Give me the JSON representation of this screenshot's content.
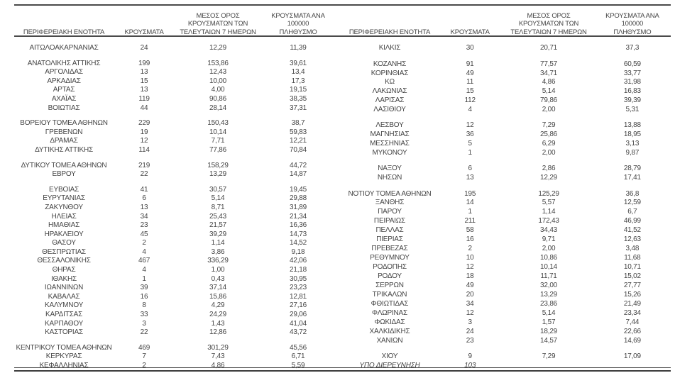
{
  "page": {
    "background_color": "#ffffff",
    "text_color": "#454545",
    "rule_color": "#4a4a4a"
  },
  "headers": {
    "region": "ΠΕΡΙΦΕΡΕΙΑΚΗ ΕΝΟΤΗΤΑ",
    "cases": "ΚΡΟΥΣΜΑΤΑ",
    "avg7": "ΜΕΣΟΣ ΟΡΟΣ\nΚΡΟΥΣΜΑΤΩΝ ΤΩΝ\nΤΕΛΕΥΤΑΙΩΝ 7 ΗΜΕΡΩΝ",
    "per100k": "ΚΡΟΥΣΜΑΤΑ ΑΝΑ 100000\nΠΛΗΘΥΣΜΟ"
  },
  "table_left": {
    "groups": [
      {
        "rows": [
          {
            "name": "ΑΙΤΩΛΟΑΚΑΡΝΑΝΙΑΣ",
            "cases": "24",
            "avg7": "12,29",
            "per100k": "11,39"
          }
        ]
      },
      {
        "rows": [
          {
            "name": "ΑΝΑΤΟΛΙΚΗΣ ΑΤΤΙΚΗΣ",
            "cases": "199",
            "avg7": "153,86",
            "per100k": "39,61"
          },
          {
            "name": "ΑΡΓΟΛΙΔΑΣ",
            "cases": "13",
            "avg7": "12,43",
            "per100k": "13,4"
          },
          {
            "name": "ΑΡΚΑΔΙΑΣ",
            "cases": "15",
            "avg7": "10,00",
            "per100k": "17,3"
          },
          {
            "name": "ΑΡΤΑΣ",
            "cases": "13",
            "avg7": "4,00",
            "per100k": "19,15"
          },
          {
            "name": "ΑΧΑΪΑΣ",
            "cases": "119",
            "avg7": "90,86",
            "per100k": "38,35"
          },
          {
            "name": "ΒΟΙΩΤΙΑΣ",
            "cases": "44",
            "avg7": "28,14",
            "per100k": "37,31"
          }
        ]
      },
      {
        "rows": [
          {
            "name": "ΒΟΡΕΙΟΥ ΤΟΜΕΑ ΑΘΗΝΩΝ",
            "cases": "229",
            "avg7": "150,43",
            "per100k": "38,7"
          },
          {
            "name": "ΓΡΕΒΕΝΩΝ",
            "cases": "19",
            "avg7": "10,14",
            "per100k": "59,83"
          },
          {
            "name": "ΔΡΑΜΑΣ",
            "cases": "12",
            "avg7": "7,71",
            "per100k": "12,21"
          },
          {
            "name": "ΔΥΤΙΚΗΣ ΑΤΤΙΚΗΣ",
            "cases": "114",
            "avg7": "77,86",
            "per100k": "70,84"
          }
        ]
      },
      {
        "rows": [
          {
            "name": "ΔΥΤΙΚΟΥ ΤΟΜΕΑ ΑΘΗΝΩΝ",
            "cases": "219",
            "avg7": "158,29",
            "per100k": "44,72"
          },
          {
            "name": "ΕΒΡΟΥ",
            "cases": "22",
            "avg7": "13,29",
            "per100k": "14,87"
          }
        ]
      },
      {
        "rows": [
          {
            "name": "ΕΥΒΟΙΑΣ",
            "cases": "41",
            "avg7": "30,57",
            "per100k": "19,45"
          },
          {
            "name": "ΕΥΡΥΤΑΝΙΑΣ",
            "cases": "6",
            "avg7": "5,14",
            "per100k": "29,88"
          },
          {
            "name": "ΖΑΚΥΝΘΟΥ",
            "cases": "13",
            "avg7": "8,71",
            "per100k": "31,89"
          },
          {
            "name": "ΗΛΕΙΑΣ",
            "cases": "34",
            "avg7": "25,43",
            "per100k": "21,34"
          },
          {
            "name": "ΗΜΑΘΙΑΣ",
            "cases": "23",
            "avg7": "21,57",
            "per100k": "16,36"
          },
          {
            "name": "ΗΡΑΚΛΕΙΟΥ",
            "cases": "45",
            "avg7": "39,29",
            "per100k": "14,73"
          },
          {
            "name": "ΘΑΣΟΥ",
            "cases": "2",
            "avg7": "1,14",
            "per100k": "14,52"
          },
          {
            "name": "ΘΕΣΠΡΩΤΙΑΣ",
            "cases": "4",
            "avg7": "3,86",
            "per100k": "9,18"
          },
          {
            "name": "ΘΕΣΣΑΛΟΝΙΚΗΣ",
            "cases": "467",
            "avg7": "336,29",
            "per100k": "42,06"
          },
          {
            "name": "ΘΗΡΑΣ",
            "cases": "4",
            "avg7": "1,00",
            "per100k": "21,18"
          },
          {
            "name": "ΙΘΑΚΗΣ",
            "cases": "1",
            "avg7": "0,43",
            "per100k": "30,95"
          },
          {
            "name": "ΙΩΑΝΝΙΝΩΝ",
            "cases": "39",
            "avg7": "37,14",
            "per100k": "23,23"
          },
          {
            "name": "ΚΑΒΑΛΑΣ",
            "cases": "16",
            "avg7": "15,86",
            "per100k": "12,81"
          },
          {
            "name": "ΚΑΛΥΜΝΟΥ",
            "cases": "8",
            "avg7": "4,29",
            "per100k": "27,16"
          },
          {
            "name": "ΚΑΡΔΙΤΣΑΣ",
            "cases": "33",
            "avg7": "24,29",
            "per100k": "29,06"
          },
          {
            "name": "ΚΑΡΠΑΘΟΥ",
            "cases": "3",
            "avg7": "1,43",
            "per100k": "41,04"
          },
          {
            "name": "ΚΑΣΤΟΡΙΑΣ",
            "cases": "22",
            "avg7": "12,86",
            "per100k": "43,72"
          }
        ]
      },
      {
        "rows": [
          {
            "name": "ΚΕΝΤΡΙΚΟΥ ΤΟΜΕΑ ΑΘΗΝΩΝ",
            "cases": "469",
            "avg7": "301,29",
            "per100k": "45,56"
          },
          {
            "name": "ΚΕΡΚΥΡΑΣ",
            "cases": "7",
            "avg7": "7,43",
            "per100k": "6,71"
          },
          {
            "name": "ΚΕΦΑΛΛΗΝΙΑΣ",
            "cases": "2",
            "avg7": "4,86",
            "per100k": "5,59"
          }
        ]
      }
    ]
  },
  "table_right": {
    "groups": [
      {
        "rows": [
          {
            "name": "ΚΙΛΚΙΣ",
            "cases": "30",
            "avg7": "20,71",
            "per100k": "37,3"
          }
        ]
      },
      {
        "rows": [
          {
            "name": "ΚΟΖΑΝΗΣ",
            "cases": "91",
            "avg7": "77,57",
            "per100k": "60,59"
          },
          {
            "name": "ΚΟΡΙΝΘΙΑΣ",
            "cases": "49",
            "avg7": "34,71",
            "per100k": "33,77"
          },
          {
            "name": "ΚΩ",
            "cases": "11",
            "avg7": "4,86",
            "per100k": "31,98"
          },
          {
            "name": "ΛΑΚΩΝΙΑΣ",
            "cases": "15",
            "avg7": "5,14",
            "per100k": "16,83"
          },
          {
            "name": "ΛΑΡΙΣΑΣ",
            "cases": "112",
            "avg7": "79,86",
            "per100k": "39,39"
          },
          {
            "name": "ΛΑΣΙΘΙΟΥ",
            "cases": "4",
            "avg7": "2,00",
            "per100k": "5,31"
          }
        ]
      },
      {
        "rows": [
          {
            "name": "ΛΕΣΒΟΥ",
            "cases": "12",
            "avg7": "7,29",
            "per100k": "13,88"
          },
          {
            "name": "ΜΑΓΝΗΣΙΑΣ",
            "cases": "36",
            "avg7": "25,86",
            "per100k": "18,95"
          },
          {
            "name": "ΜΕΣΣΗΝΙΑΣ",
            "cases": "5",
            "avg7": "6,29",
            "per100k": "3,13"
          },
          {
            "name": "ΜΥΚΟΝΟΥ",
            "cases": "1",
            "avg7": "2,00",
            "per100k": "9,87"
          }
        ]
      },
      {
        "rows": [
          {
            "name": "ΝΑΞΟΥ",
            "cases": "6",
            "avg7": "2,86",
            "per100k": "28,79"
          },
          {
            "name": "ΝΗΣΩΝ",
            "cases": "13",
            "avg7": "12,29",
            "per100k": "17,41"
          }
        ]
      },
      {
        "rows": [
          {
            "name": "ΝΟΤΙΟΥ ΤΟΜΕΑ ΑΘΗΝΩΝ",
            "cases": "195",
            "avg7": "125,29",
            "per100k": "36,8"
          },
          {
            "name": "ΞΑΝΘΗΣ",
            "cases": "14",
            "avg7": "5,57",
            "per100k": "12,59"
          },
          {
            "name": "ΠΑΡΟΥ",
            "cases": "1",
            "avg7": "1,14",
            "per100k": "6,7"
          },
          {
            "name": "ΠΕΙΡΑΙΩΣ",
            "cases": "211",
            "avg7": "172,43",
            "per100k": "46,99"
          },
          {
            "name": "ΠΕΛΛΑΣ",
            "cases": "58",
            "avg7": "34,43",
            "per100k": "41,52"
          },
          {
            "name": "ΠΙΕΡΙΑΣ",
            "cases": "16",
            "avg7": "9,71",
            "per100k": "12,63"
          },
          {
            "name": "ΠΡΕΒΕΖΑΣ",
            "cases": "2",
            "avg7": "2,00",
            "per100k": "3,48"
          },
          {
            "name": "ΡΕΘΥΜΝΟΥ",
            "cases": "10",
            "avg7": "10,86",
            "per100k": "11,68"
          },
          {
            "name": "ΡΟΔΟΠΗΣ",
            "cases": "12",
            "avg7": "10,14",
            "per100k": "10,71"
          },
          {
            "name": "ΡΟΔΟΥ",
            "cases": "18",
            "avg7": "11,71",
            "per100k": "15,02"
          },
          {
            "name": "ΣΕΡΡΩΝ",
            "cases": "49",
            "avg7": "32,00",
            "per100k": "27,77"
          },
          {
            "name": "ΤΡΙΚΑΛΩΝ",
            "cases": "20",
            "avg7": "13,29",
            "per100k": "15,26"
          },
          {
            "name": "ΦΘΙΩΤΙΔΑΣ",
            "cases": "34",
            "avg7": "23,86",
            "per100k": "21,49"
          },
          {
            "name": "ΦΛΩΡΙΝΑΣ",
            "cases": "12",
            "avg7": "5,14",
            "per100k": "23,34"
          },
          {
            "name": "ΦΩΚΙΔΑΣ",
            "cases": "3",
            "avg7": "1,57",
            "per100k": "7,44"
          },
          {
            "name": "ΧΑΛΚΙΔΙΚΗΣ",
            "cases": "24",
            "avg7": "18,29",
            "per100k": "22,66"
          },
          {
            "name": "ΧΑΝΙΩΝ",
            "cases": "23",
            "avg7": "14,57",
            "per100k": "14,69"
          }
        ]
      },
      {
        "rows": [
          {
            "name": "ΧΙΟΥ",
            "cases": "9",
            "avg7": "7,29",
            "per100k": "17,09"
          },
          {
            "name": "ΥΠΟ ΔΙΕΡΕΥΝΗΣΗ",
            "cases": "103",
            "avg7": "",
            "per100k": "",
            "italic": true
          }
        ]
      }
    ]
  }
}
